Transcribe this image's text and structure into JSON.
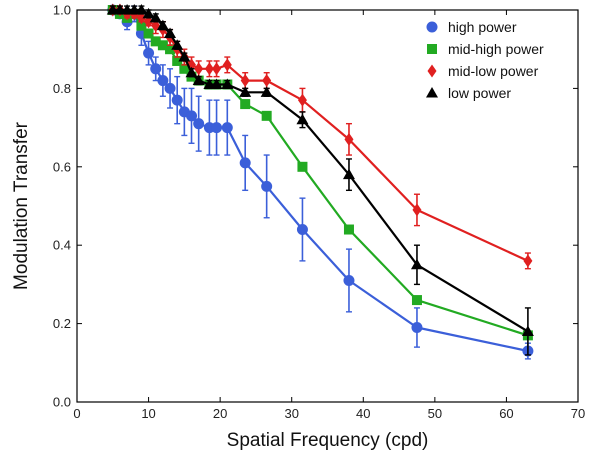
{
  "chart_data": {
    "type": "line",
    "xlabel": "Spatial Frequency (cpd)",
    "ylabel": "Modulation Transfer",
    "xlim": [
      0,
      70
    ],
    "ylim": [
      0,
      1.0
    ],
    "x_ticks": [
      "0",
      "10",
      "20",
      "30",
      "40",
      "50",
      "60",
      "70"
    ],
    "y_ticks": [
      "0.0",
      "0.2",
      "0.4",
      "0.6",
      "0.8",
      "1.0"
    ],
    "x_tick_values": [
      0,
      10,
      20,
      30,
      40,
      50,
      60,
      70
    ],
    "y_tick_values": [
      0,
      0.2,
      0.4,
      0.6,
      0.8,
      1.0
    ],
    "grid": false,
    "legend_position": "top-right",
    "series": [
      {
        "name": "high power",
        "color": "#3b5fd9",
        "marker": "circle",
        "x": [
          5,
          6,
          7,
          8,
          9,
          10,
          11,
          12,
          13,
          14,
          15,
          16,
          17,
          18.5,
          19.5,
          21,
          23.5,
          26.5,
          31.5,
          38,
          47.5,
          63
        ],
        "y": [
          1.0,
          0.99,
          0.97,
          0.99,
          0.94,
          0.89,
          0.85,
          0.82,
          0.8,
          0.77,
          0.74,
          0.73,
          0.71,
          0.7,
          0.7,
          0.7,
          0.61,
          0.55,
          0.44,
          0.31,
          0.19,
          0.13
        ],
        "err": [
          0.01,
          0.01,
          0.02,
          0.02,
          0.03,
          0.03,
          0.03,
          0.04,
          0.05,
          0.06,
          0.06,
          0.07,
          0.07,
          0.07,
          0.07,
          0.07,
          0.07,
          0.08,
          0.08,
          0.08,
          0.05,
          0.02
        ]
      },
      {
        "name": "mid-high power",
        "color": "#22aa22",
        "marker": "square",
        "x": [
          5,
          6,
          7,
          8,
          9,
          10,
          11,
          12,
          13,
          14,
          15,
          16,
          17,
          18.5,
          19.5,
          21,
          23.5,
          26.5,
          31.5,
          38,
          47.5,
          63
        ],
        "y": [
          1.0,
          0.99,
          0.98,
          0.99,
          0.96,
          0.94,
          0.92,
          0.91,
          0.9,
          0.87,
          0.85,
          0.83,
          0.82,
          0.81,
          0.81,
          0.81,
          0.76,
          0.73,
          0.6,
          0.44,
          0.26,
          0.17
        ],
        "err": [
          0.01,
          0.01,
          0.01,
          0.01,
          0.01,
          0.01,
          0.01,
          0.01,
          0.01,
          0.01,
          0.01,
          0.01,
          0.01,
          0.01,
          0.01,
          0.01,
          0.01,
          0.01,
          0.01,
          0.01,
          0.01,
          0.01
        ]
      },
      {
        "name": "mid-low power",
        "color": "#e02020",
        "marker": "diamond",
        "x": [
          5,
          6,
          7,
          8,
          9,
          10,
          11,
          12,
          13,
          14,
          15,
          16,
          17,
          18.5,
          19.5,
          21,
          23.5,
          26.5,
          31.5,
          38,
          47.5,
          63
        ],
        "y": [
          1.0,
          1.0,
          0.99,
          0.99,
          0.98,
          0.97,
          0.96,
          0.95,
          0.93,
          0.9,
          0.88,
          0.86,
          0.85,
          0.85,
          0.85,
          0.86,
          0.82,
          0.82,
          0.77,
          0.67,
          0.49,
          0.36
        ],
        "err": [
          0.01,
          0.01,
          0.01,
          0.01,
          0.01,
          0.01,
          0.02,
          0.02,
          0.02,
          0.02,
          0.02,
          0.02,
          0.02,
          0.02,
          0.02,
          0.02,
          0.02,
          0.02,
          0.03,
          0.04,
          0.04,
          0.02
        ]
      },
      {
        "name": "low power",
        "color": "#000000",
        "marker": "triangle",
        "x": [
          5,
          6,
          7,
          8,
          9,
          10,
          11,
          12,
          13,
          14,
          15,
          16,
          17,
          18.5,
          19.5,
          21,
          23.5,
          26.5,
          31.5,
          38,
          47.5,
          63
        ],
        "y": [
          1.0,
          1.0,
          1.0,
          1.0,
          1.0,
          0.99,
          0.98,
          0.96,
          0.94,
          0.91,
          0.88,
          0.84,
          0.82,
          0.81,
          0.81,
          0.81,
          0.79,
          0.79,
          0.72,
          0.58,
          0.35,
          0.18
        ],
        "err": [
          0.01,
          0.01,
          0.01,
          0.01,
          0.01,
          0.01,
          0.01,
          0.01,
          0.01,
          0.01,
          0.01,
          0.01,
          0.01,
          0.01,
          0.01,
          0.01,
          0.01,
          0.01,
          0.02,
          0.04,
          0.05,
          0.06
        ]
      }
    ]
  }
}
